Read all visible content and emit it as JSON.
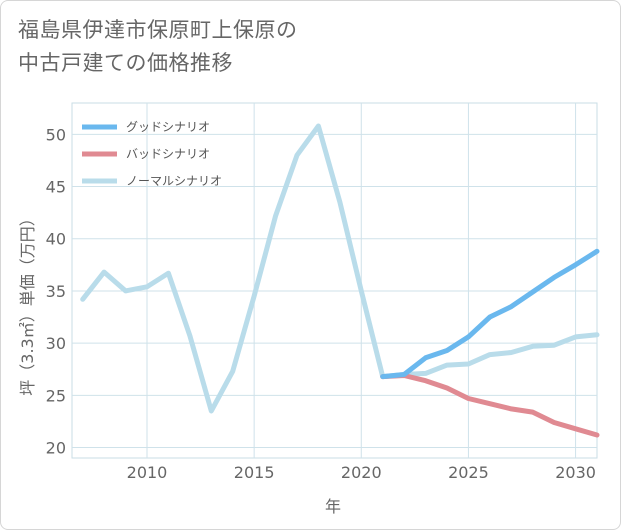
{
  "title": {
    "line1": "福島県伊達市保原町上保原の",
    "line2": "中古戸建ての価格推移"
  },
  "chart_data": {
    "type": "line",
    "xlabel": "年",
    "ylabel": "坪（3.3㎡）単価（万円）",
    "xlim": [
      2006.5,
      2031
    ],
    "ylim": [
      19,
      53
    ],
    "xticks": [
      2010,
      2015,
      2020,
      2025,
      2030
    ],
    "yticks": [
      20,
      25,
      30,
      35,
      40,
      45,
      50
    ],
    "grid": true,
    "legend_position": "top-left",
    "series": [
      {
        "name": "グッドシナリオ",
        "color": "#6ab8ee",
        "x": [
          2021,
          2022,
          2023,
          2024,
          2025,
          2026,
          2027,
          2028,
          2029,
          2030,
          2031
        ],
        "y": [
          26.8,
          27.0,
          28.6,
          29.3,
          30.6,
          32.5,
          33.5,
          34.9,
          36.3,
          37.5,
          38.8
        ]
      },
      {
        "name": "バッドシナリオ",
        "color": "#e08a92",
        "x": [
          2021,
          2022,
          2023,
          2024,
          2025,
          2026,
          2027,
          2028,
          2029,
          2030,
          2031
        ],
        "y": [
          26.8,
          26.9,
          26.4,
          25.7,
          24.7,
          24.2,
          23.7,
          23.4,
          22.4,
          21.8,
          21.2
        ]
      },
      {
        "name": "ノーマルシナリオ",
        "color": "#b9dcea",
        "x": [
          2007,
          2008,
          2009,
          2010,
          2011,
          2012,
          2013,
          2014,
          2015,
          2016,
          2017,
          2018,
          2019,
          2020,
          2021,
          2022,
          2023,
          2024,
          2025,
          2026,
          2027,
          2028,
          2029,
          2030,
          2031
        ],
        "y": [
          34.2,
          36.8,
          35.0,
          35.4,
          36.7,
          30.7,
          23.5,
          27.3,
          34.5,
          42.2,
          48.0,
          50.8,
          43.5,
          35.0,
          26.8,
          27.0,
          27.1,
          27.9,
          28.0,
          28.9,
          29.1,
          29.7,
          29.8,
          30.6,
          30.8
        ]
      }
    ]
  }
}
